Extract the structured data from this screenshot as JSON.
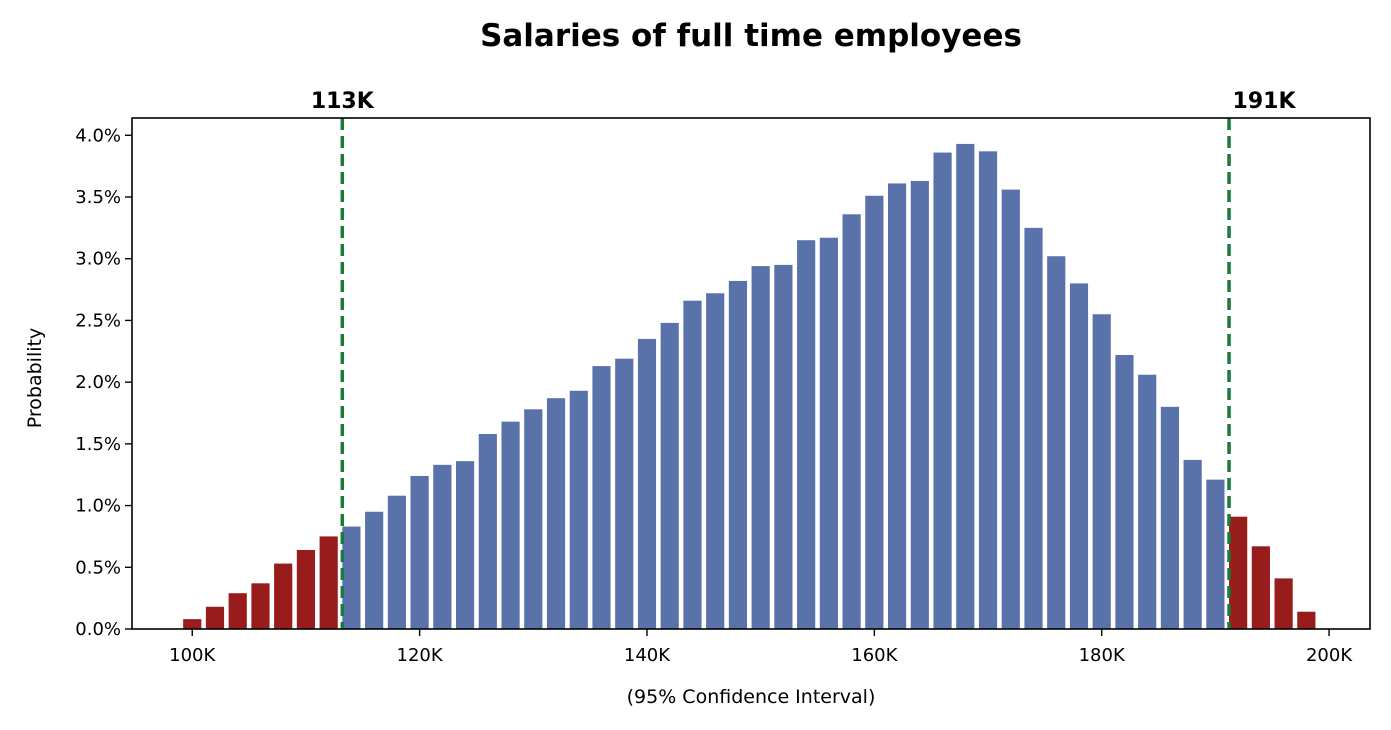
{
  "chart_data": {
    "type": "bar",
    "title": "Salaries of full time employees",
    "xlabel": "(95% Confidence Interval)",
    "ylabel": "Probability",
    "xlim": [
      94700,
      203600
    ],
    "ylim": [
      0,
      4.14
    ],
    "xticks": [
      100000,
      120000,
      140000,
      160000,
      180000,
      200000
    ],
    "xtick_labels": [
      "100K",
      "120K",
      "140K",
      "160K",
      "180K",
      "200K"
    ],
    "yticks": [
      0,
      0.5,
      1.0,
      1.5,
      2.0,
      2.5,
      3.0,
      3.5,
      4.0
    ],
    "ytick_labels": [
      "0.0%",
      "0.5%",
      "1.0%",
      "1.5%",
      "2.0%",
      "2.5%",
      "3.0%",
      "3.5%",
      "4.0%"
    ],
    "bin_start": 100000,
    "bin_step": 2000,
    "bar_width": 1600,
    "values": [
      0.08,
      0.18,
      0.29,
      0.37,
      0.53,
      0.64,
      0.75,
      0.83,
      0.95,
      1.08,
      1.24,
      1.33,
      1.36,
      1.58,
      1.68,
      1.78,
      1.87,
      1.93,
      2.13,
      2.19,
      2.35,
      2.48,
      2.66,
      2.72,
      2.82,
      2.94,
      2.95,
      3.15,
      3.17,
      3.36,
      3.51,
      3.61,
      3.63,
      3.86,
      3.93,
      3.87,
      3.56,
      3.25,
      3.02,
      2.8,
      2.55,
      2.22,
      2.06,
      1.8,
      1.37,
      1.21,
      0.91,
      0.67,
      0.41,
      0.14
    ],
    "interval": {
      "lower": 113200,
      "upper": 191200,
      "lower_label": "113K",
      "upper_label": "191K"
    },
    "colors": {
      "inside": "#5a72aa",
      "outside": "#991c1c",
      "interval_line": "#1a7a3a",
      "axis": "#000000"
    },
    "grid": false,
    "legend": "none"
  }
}
